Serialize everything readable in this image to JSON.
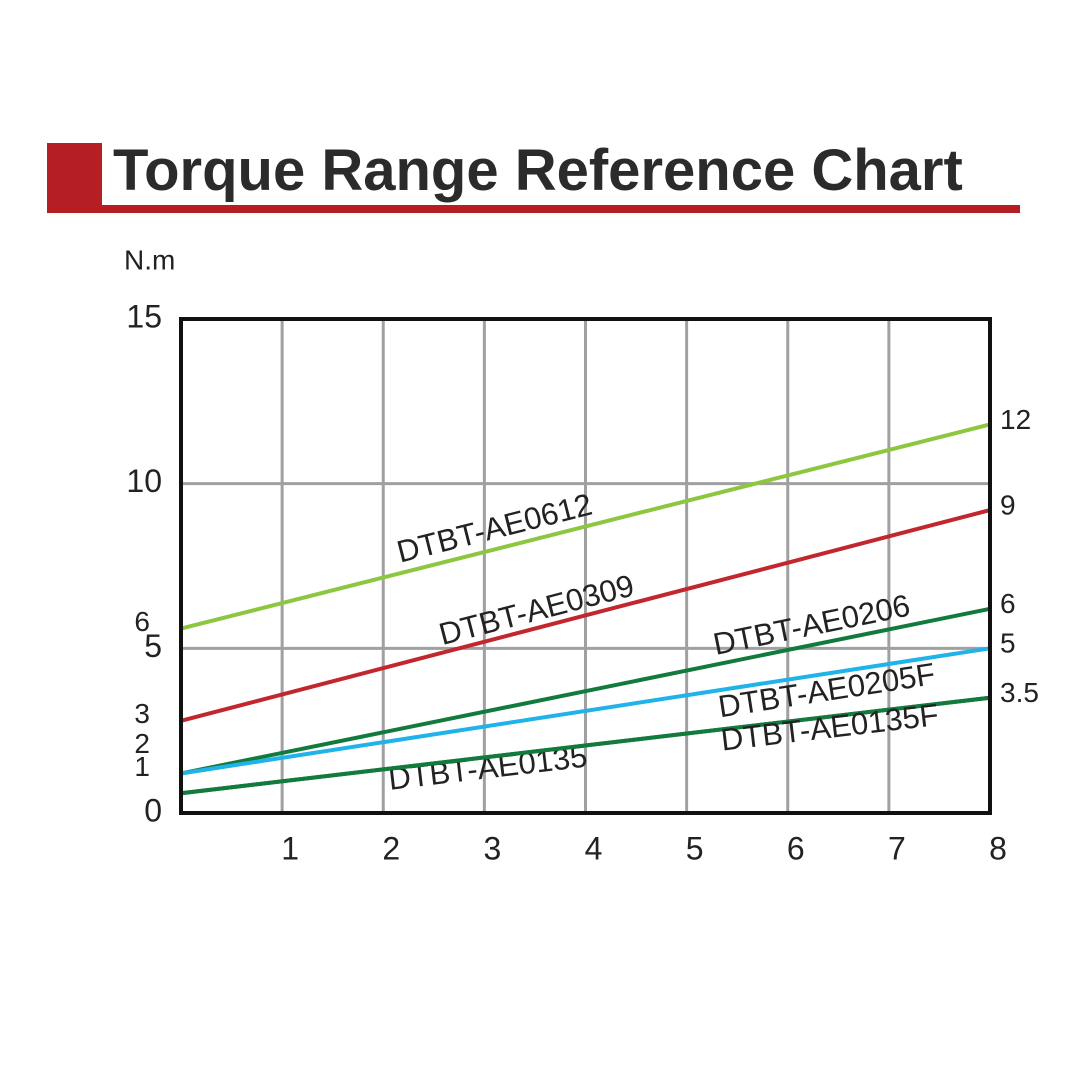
{
  "chart_data": {
    "type": "line",
    "title": "Torque Range Reference Chart",
    "y_label": "N.m",
    "xlim": [
      0,
      8
    ],
    "xticks": [
      1,
      2,
      3,
      4,
      5,
      6,
      7,
      8
    ],
    "ylim": [
      0,
      15
    ],
    "yticks": [
      0,
      5,
      10,
      15
    ],
    "grid": true,
    "y_annotations": [
      {
        "value": 5.6,
        "label": "6"
      },
      {
        "value": 2.8,
        "label": "3"
      },
      {
        "value": 1.9,
        "label": "2"
      },
      {
        "value": 1.2,
        "label": "1"
      }
    ],
    "x": [
      0,
      8
    ],
    "series": [
      {
        "name": "DTBT-AE0612",
        "color": "#8dc63f",
        "values": [
          5.6,
          11.8
        ],
        "value_labels": [
          null,
          "12"
        ]
      },
      {
        "name": "DTBT-AE0309",
        "color": "#c1272d",
        "values": [
          2.8,
          9.2
        ],
        "value_labels": [
          null,
          "9"
        ]
      },
      {
        "name": "DTBT-AE0206",
        "color": "#137a3e",
        "values": [
          1.2,
          6.2
        ],
        "value_labels": [
          null,
          "6"
        ]
      },
      {
        "name": "DTBT-AE0205F",
        "color": "#1fb3ea",
        "values": [
          1.2,
          5.0
        ],
        "value_labels": [
          null,
          "5"
        ]
      },
      {
        "name": "DTBT-AE0135",
        "color": "#137a3e",
        "values": [
          0.6,
          3.5
        ],
        "value_labels": [
          null,
          "3.5"
        ]
      },
      {
        "name": "DTBT-AE0135F",
        "color": "#137a3e",
        "values": [
          0.6,
          3.5
        ]
      }
    ]
  }
}
